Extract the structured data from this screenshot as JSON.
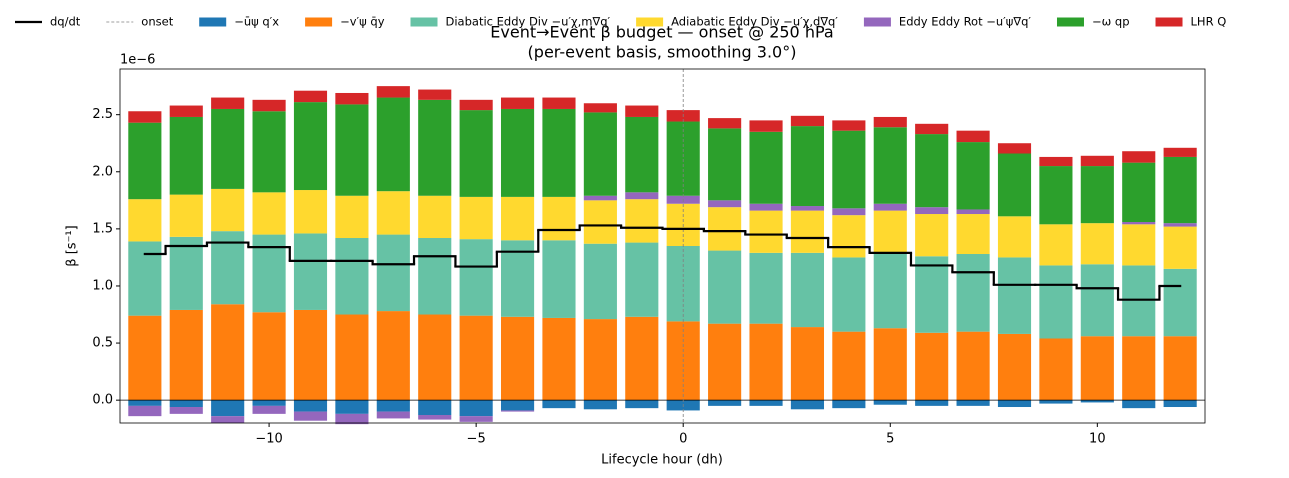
{
  "chart_data": {
    "type": "bar",
    "title": "Event→Event β budget — onset @ 250 hPa",
    "subtitle": "(per-event basis, smoothing 3.0°)",
    "x_label": "Lifecycle hour (dh)",
    "y_label": "β  [s⁻¹]",
    "y_offset_label": "1e−6",
    "stacked": true,
    "x": [
      -13,
      -12,
      -11,
      -10,
      -9,
      -8,
      -7,
      -6,
      -5,
      -4,
      -3,
      -2,
      -1,
      0,
      1,
      2,
      3,
      4,
      5,
      6,
      7,
      8,
      9,
      10,
      11,
      12
    ],
    "series": [
      {
        "name": "−ūψ q′x",
        "color": "#1f77b4",
        "values": [
          -0.05,
          -0.06,
          -0.14,
          -0.05,
          -0.1,
          -0.12,
          -0.1,
          -0.13,
          -0.14,
          -0.09,
          -0.07,
          -0.08,
          -0.07,
          -0.09,
          -0.05,
          -0.05,
          -0.08,
          -0.07,
          -0.04,
          -0.05,
          -0.05,
          -0.06,
          -0.03,
          -0.02,
          -0.07,
          -0.06
        ]
      },
      {
        "name": "−v′ψ q̄y",
        "color": "#ff7f0e",
        "values": [
          0.74,
          0.79,
          0.84,
          0.77,
          0.79,
          0.75,
          0.78,
          0.75,
          0.74,
          0.73,
          0.72,
          0.71,
          0.73,
          0.69,
          0.67,
          0.67,
          0.64,
          0.6,
          0.63,
          0.59,
          0.6,
          0.58,
          0.54,
          0.56,
          0.56,
          0.56
        ]
      },
      {
        "name": "Diabatic Eddy Div −u′χ,m∇q′",
        "color": "#66c2a5",
        "values": [
          0.65,
          0.64,
          0.64,
          0.68,
          0.67,
          0.67,
          0.67,
          0.67,
          0.67,
          0.67,
          0.68,
          0.66,
          0.65,
          0.66,
          0.64,
          0.62,
          0.65,
          0.65,
          0.65,
          0.67,
          0.68,
          0.67,
          0.64,
          0.63,
          0.62,
          0.59
        ]
      },
      {
        "name": "Adiabatic Eddy Div −u′χ,d∇q′",
        "color": "#ffd92f",
        "values": [
          0.37,
          0.37,
          0.37,
          0.37,
          0.38,
          0.37,
          0.38,
          0.37,
          0.37,
          0.38,
          0.38,
          0.38,
          0.38,
          0.37,
          0.38,
          0.37,
          0.37,
          0.37,
          0.38,
          0.37,
          0.35,
          0.36,
          0.36,
          0.36,
          0.36,
          0.37
        ]
      },
      {
        "name": "Eddy Eddy Rot −u′ψ∇q′",
        "color": "#9467bd",
        "values": [
          -0.09,
          -0.06,
          -0.06,
          -0.07,
          -0.08,
          -0.09,
          -0.06,
          -0.04,
          -0.05,
          -0.01,
          0,
          0.04,
          0.06,
          0.07,
          0.06,
          0.06,
          0.04,
          0.06,
          0.06,
          0.06,
          0.04,
          0,
          0,
          0,
          0.02,
          0.03
        ]
      },
      {
        "name": "−ω qp",
        "color": "#2ca02c",
        "values": [
          0.67,
          0.68,
          0.7,
          0.71,
          0.77,
          0.8,
          0.82,
          0.84,
          0.76,
          0.77,
          0.77,
          0.73,
          0.66,
          0.65,
          0.63,
          0.63,
          0.7,
          0.68,
          0.67,
          0.64,
          0.59,
          0.55,
          0.51,
          0.5,
          0.52,
          0.58
        ]
      },
      {
        "name": "LHR Q",
        "color": "#d62728",
        "values": [
          0.1,
          0.1,
          0.1,
          0.1,
          0.1,
          0.1,
          0.1,
          0.09,
          0.09,
          0.1,
          0.1,
          0.08,
          0.1,
          0.1,
          0.09,
          0.1,
          0.09,
          0.09,
          0.09,
          0.09,
          0.1,
          0.09,
          0.08,
          0.09,
          0.1,
          0.08
        ]
      }
    ],
    "step_line": {
      "name": "dq/dt",
      "color": "#000000",
      "values": [
        1.28,
        1.35,
        1.38,
        1.34,
        1.22,
        1.22,
        1.19,
        1.26,
        1.17,
        1.3,
        1.49,
        1.53,
        1.51,
        1.5,
        1.48,
        1.45,
        1.42,
        1.34,
        1.29,
        1.18,
        1.12,
        1.01,
        1.01,
        0.98,
        0.88,
        1.0
      ]
    },
    "onset_line": {
      "name": "onset",
      "color": "#808080",
      "x": 0
    },
    "xlim": [
      -13.6,
      12.6
    ],
    "ylim": [
      -0.2,
      2.9
    ],
    "xticks": [
      {
        "value": -10,
        "label": "−10"
      },
      {
        "value": -5,
        "label": "−5"
      },
      0,
      5,
      10
    ],
    "yticks": [
      {
        "value": 0,
        "label": "0.0"
      },
      {
        "value": 0.5,
        "label": "0.5"
      },
      {
        "value": 1,
        "label": "1.0"
      },
      {
        "value": 1.5,
        "label": "1.5"
      },
      {
        "value": 2,
        "label": "2.0"
      },
      {
        "value": 2.5,
        "label": "2.5"
      }
    ],
    "bar_width": 0.8
  }
}
